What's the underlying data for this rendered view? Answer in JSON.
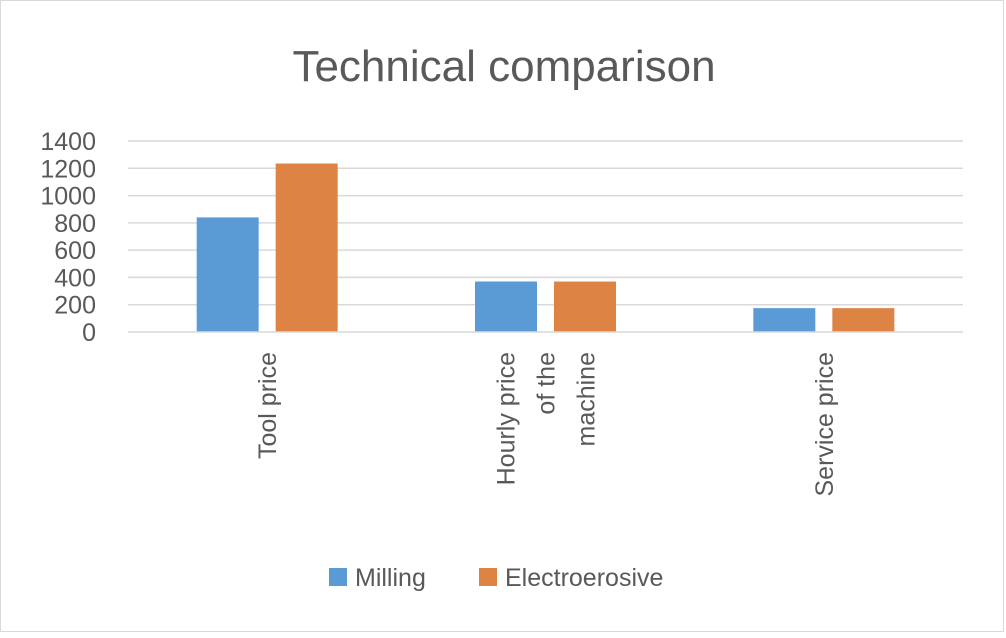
{
  "chart_data": {
    "type": "bar",
    "title": "Technical comparison",
    "categories": [
      "Tool price",
      "Hourly price of the machine",
      "Service price"
    ],
    "category_label_lines": [
      [
        "Tool price"
      ],
      [
        "Hourly price",
        "of the",
        "machine"
      ],
      [
        "Service price"
      ]
    ],
    "series": [
      {
        "name": "Milling",
        "color": "#5b9bd5",
        "values": [
          840,
          370,
          175
        ]
      },
      {
        "name": "Electroerosive",
        "color": "#dd8444",
        "values": [
          1235,
          370,
          175
        ]
      }
    ],
    "ylim": [
      0,
      1400
    ],
    "yticks": [
      0,
      200,
      400,
      600,
      800,
      1000,
      1200,
      1400
    ],
    "grid": true,
    "legend_position": "bottom",
    "xlabel": "",
    "ylabel": ""
  }
}
